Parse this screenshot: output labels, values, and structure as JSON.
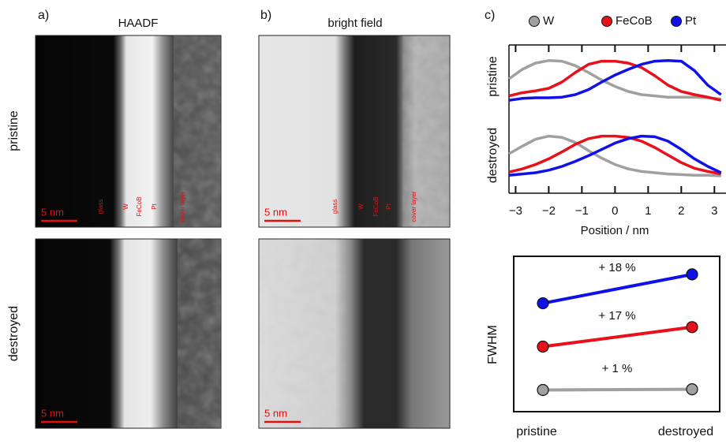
{
  "panel_labels": [
    "a)",
    "b)",
    "c)"
  ],
  "image_titles": [
    "HAADF",
    "bright field"
  ],
  "row_labels": [
    "pristine",
    "destroyed"
  ],
  "scale_bars": [
    "5 nm",
    "5 nm",
    "5 nm",
    "5 nm"
  ],
  "layer_labels": {
    "haadf": [
      "glass",
      "W",
      "FeCoB",
      "Pt",
      "cover layer"
    ],
    "bright_field": [
      "glass",
      "W",
      "FeCoB",
      "Pt",
      "cover layer"
    ]
  },
  "chart_data": [
    {
      "type": "line",
      "xlabel": "Position / nm",
      "x": [
        -3.2,
        -2.8,
        -2.4,
        -2,
        -1.6,
        -1.2,
        -0.8,
        -0.4,
        0,
        0.4,
        0.8,
        1.2,
        1.6,
        2,
        2.4,
        2.8,
        3.2
      ],
      "xlim": [
        -3.2,
        3.35
      ],
      "xticks": [
        {
          "value": -3,
          "label": "−3"
        },
        {
          "value": -2,
          "label": "−2"
        },
        {
          "value": -1,
          "label": "−1"
        },
        0,
        1,
        2,
        3
      ],
      "legend": [
        {
          "name": "W",
          "color": "#a0a0a0"
        },
        {
          "name": "FeCoB",
          "color": "#e8101a"
        },
        {
          "name": "Pt",
          "color": "#1010e8"
        }
      ],
      "panels": [
        {
          "label": "pristine",
          "ylim": [
            0,
            1
          ],
          "series": [
            {
              "values": [
                0.5,
                0.65,
                0.75,
                0.79,
                0.78,
                0.71,
                0.6,
                0.48,
                0.38,
                0.3,
                0.25,
                0.23,
                0.21,
                0.21,
                0.21,
                0.2,
                0.18
              ]
            },
            {
              "values": [
                0.23,
                0.28,
                0.31,
                0.35,
                0.45,
                0.6,
                0.73,
                0.78,
                0.78,
                0.75,
                0.68,
                0.55,
                0.4,
                0.3,
                0.25,
                0.21,
                0.16
              ]
            },
            {
              "values": [
                0.16,
                0.19,
                0.2,
                0.2,
                0.21,
                0.25,
                0.33,
                0.45,
                0.56,
                0.65,
                0.73,
                0.78,
                0.79,
                0.78,
                0.63,
                0.4,
                0.25
              ]
            }
          ]
        },
        {
          "label": "destroyed",
          "ylim": [
            0,
            1
          ],
          "series": [
            {
              "values": [
                0.5,
                0.62,
                0.73,
                0.78,
                0.76,
                0.68,
                0.55,
                0.43,
                0.33,
                0.26,
                0.22,
                0.2,
                0.18,
                0.17,
                0.16,
                0.16,
                0.15
              ]
            },
            {
              "values": [
                0.21,
                0.26,
                0.33,
                0.42,
                0.53,
                0.65,
                0.74,
                0.78,
                0.78,
                0.76,
                0.7,
                0.6,
                0.48,
                0.36,
                0.27,
                0.22,
                0.18
              ]
            },
            {
              "values": [
                0.16,
                0.18,
                0.2,
                0.24,
                0.3,
                0.38,
                0.47,
                0.57,
                0.67,
                0.74,
                0.78,
                0.77,
                0.7,
                0.57,
                0.42,
                0.3,
                0.2
              ]
            }
          ]
        }
      ]
    },
    {
      "type": "slope",
      "ylabel": "FWHM",
      "categories": [
        "pristine",
        "destroyed"
      ],
      "ylim": [
        0.7,
        2.85
      ],
      "series": [
        {
          "color": "#1010e8",
          "values": [
            2.2,
            2.6
          ],
          "annotation": "+ 18 %"
        },
        {
          "color": "#e8101a",
          "values": [
            1.6,
            1.87
          ],
          "annotation": "+ 17 %"
        },
        {
          "color": "#a0a0a0",
          "values": [
            1.0,
            1.01
          ],
          "annotation": "+ 1 %"
        }
      ]
    }
  ]
}
